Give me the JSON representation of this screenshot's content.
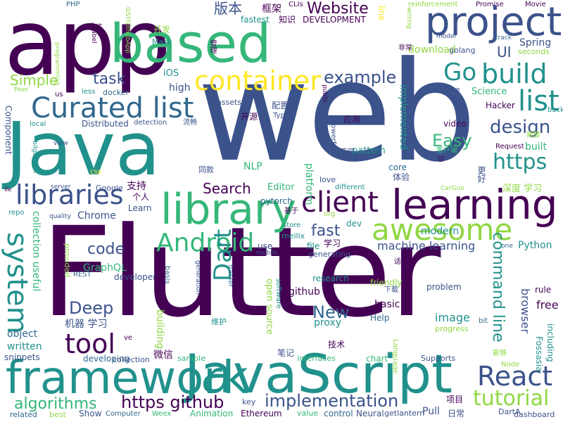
{
  "palette": {
    "purple": "#440154",
    "indigo": "#3b528b",
    "blue": "#31688e",
    "teal": "#21918c",
    "green": "#35b779",
    "lime": "#90d743",
    "yellow": "#fde725"
  },
  "words": [
    {
      "text": "Flutter",
      "c": "purple"
    },
    {
      "text": "web",
      "c": "indigo"
    },
    {
      "text": "app",
      "c": "purple"
    },
    {
      "text": "Java",
      "c": "teal"
    },
    {
      "text": "JavaScript",
      "c": "teal"
    },
    {
      "text": "framework",
      "c": "teal"
    },
    {
      "text": "based",
      "c": "green"
    },
    {
      "text": "project",
      "c": "indigo"
    },
    {
      "text": "library",
      "c": "green"
    },
    {
      "text": "learning",
      "c": "purple"
    },
    {
      "text": "container",
      "c": "yellow"
    },
    {
      "text": "Curated list",
      "c": "blue"
    },
    {
      "text": "awesome",
      "c": "lime"
    },
    {
      "text": "build",
      "c": "teal"
    },
    {
      "text": "list",
      "c": "teal"
    },
    {
      "text": "libraries",
      "c": "indigo"
    },
    {
      "text": "client",
      "c": "purple"
    },
    {
      "text": "Android",
      "c": "green"
    },
    {
      "text": "system",
      "c": "teal"
    },
    {
      "text": "tool",
      "c": "purple"
    },
    {
      "text": "React",
      "c": "indigo"
    },
    {
      "text": "Dart",
      "c": "teal"
    },
    {
      "text": "Go",
      "c": "teal"
    },
    {
      "text": "design",
      "c": "indigo"
    },
    {
      "text": "https",
      "c": "teal"
    },
    {
      "text": "tutorial",
      "c": "lime"
    },
    {
      "text": "command line",
      "c": "teal"
    },
    {
      "text": "implementation",
      "c": "indigo"
    },
    {
      "text": "https github",
      "c": "purple"
    },
    {
      "text": "algorithms",
      "c": "green"
    },
    {
      "text": "Deep",
      "c": "indigo"
    },
    {
      "text": "New",
      "c": "blue"
    },
    {
      "text": "code",
      "c": "indigo"
    },
    {
      "text": "example",
      "c": "indigo"
    },
    {
      "text": "task",
      "c": "indigo"
    },
    {
      "text": "Simple",
      "c": "lime"
    },
    {
      "text": "Website",
      "c": "purple"
    },
    {
      "text": "版本",
      "c": "indigo"
    },
    {
      "text": "Easy",
      "c": "green"
    },
    {
      "text": "Search",
      "c": "purple"
    },
    {
      "text": "fast",
      "c": "indigo"
    },
    {
      "text": "UI",
      "c": "indigo"
    },
    {
      "text": "machine learning",
      "c": "indigo"
    },
    {
      "text": "collection useful",
      "c": "green"
    },
    {
      "text": "object",
      "c": "blue"
    },
    {
      "text": "written",
      "c": "teal"
    },
    {
      "text": "snippets",
      "c": "indigo"
    },
    {
      "text": "developing",
      "c": "blue"
    },
    {
      "text": "collection",
      "c": "indigo"
    },
    {
      "text": "sample",
      "c": "green"
    },
    {
      "text": "interfaces",
      "c": "green"
    },
    {
      "text": "chart",
      "c": "green"
    },
    {
      "text": "Supports",
      "c": "indigo"
    },
    {
      "text": "dashboard",
      "c": "indigo"
    },
    {
      "text": "Pull",
      "c": "indigo"
    },
    {
      "text": "日常",
      "c": "indigo"
    },
    {
      "text": "项目",
      "c": "purple"
    },
    {
      "text": "DartA",
      "c": "indigo"
    },
    {
      "text": "Neural",
      "c": "indigo"
    },
    {
      "text": "getlantern",
      "c": "indigo"
    },
    {
      "text": "control",
      "c": "blue"
    },
    {
      "text": "value",
      "c": "green"
    },
    {
      "text": "Ethereum",
      "c": "purple"
    },
    {
      "text": "key",
      "c": "indigo"
    },
    {
      "text": "Animation",
      "c": "green"
    },
    {
      "text": "Weex",
      "c": "green"
    },
    {
      "text": "Computer",
      "c": "blue"
    },
    {
      "text": "Show",
      "c": "indigo"
    },
    {
      "text": "best",
      "c": "lime"
    },
    {
      "text": "related",
      "c": "blue"
    },
    {
      "text": "browser",
      "c": "indigo"
    },
    {
      "text": "free",
      "c": "purple"
    },
    {
      "text": "image",
      "c": "teal"
    },
    {
      "text": "progress",
      "c": "lime"
    },
    {
      "text": "proxy",
      "c": "teal"
    },
    {
      "text": "github",
      "c": "purple"
    },
    {
      "text": "basic",
      "c": "purple"
    },
    {
      "text": "Help",
      "c": "blue"
    },
    {
      "text": "research",
      "c": "teal"
    },
    {
      "text": "friendly",
      "c": "lime"
    },
    {
      "text": "problem",
      "c": "indigo"
    },
    {
      "text": "rule",
      "c": "purple"
    },
    {
      "text": "Python",
      "c": "teal"
    },
    {
      "text": "modern",
      "c": "teal"
    },
    {
      "text": "file",
      "c": "teal"
    },
    {
      "text": "学习",
      "c": "purple"
    },
    {
      "text": "open source",
      "c": "lime"
    },
    {
      "text": "use",
      "c": "indigo"
    },
    {
      "text": "mobile",
      "c": "indigo"
    },
    {
      "text": "meilix",
      "c": "teal"
    },
    {
      "text": "generating",
      "c": "indigo"
    },
    {
      "text": "GraphQL",
      "c": "green"
    },
    {
      "text": "developer",
      "c": "indigo"
    },
    {
      "text": "机器 学习",
      "c": "indigo"
    },
    {
      "text": "微信",
      "c": "purple"
    },
    {
      "text": "笔记",
      "c": "indigo"
    },
    {
      "text": "技术",
      "c": "purple"
    },
    {
      "text": "REST",
      "c": "blue"
    },
    {
      "text": "provided",
      "c": "lime"
    },
    {
      "text": "Chrome",
      "c": "indigo"
    },
    {
      "text": "Learn",
      "c": "indigo"
    },
    {
      "text": "个人",
      "c": "purple"
    },
    {
      "text": "支持",
      "c": "purple"
    },
    {
      "text": "Google",
      "c": "indigo"
    },
    {
      "text": "server",
      "c": "indigo"
    },
    {
      "text": "NLP",
      "c": "green"
    },
    {
      "text": "pytorch",
      "c": "blue"
    },
    {
      "text": "Editor",
      "c": "green"
    },
    {
      "text": "platform",
      "c": "green"
    },
    {
      "text": "pattern",
      "c": "teal"
    },
    {
      "text": "core",
      "c": "blue"
    },
    {
      "text": "体验",
      "c": "indigo"
    },
    {
      "text": "深度 学习",
      "c": "lime"
    },
    {
      "text": "CarGuo",
      "c": "lime"
    },
    {
      "text": "Distributed",
      "c": "indigo"
    },
    {
      "text": "detection",
      "c": "indigo"
    },
    {
      "text": "流畅",
      "c": "indigo"
    },
    {
      "text": "开源",
      "c": "purple"
    },
    {
      "text": "配置",
      "c": "indigo"
    },
    {
      "text": "assets",
      "c": "indigo"
    },
    {
      "text": "Type",
      "c": "indigo"
    },
    {
      "text": "应用",
      "c": "purple"
    },
    {
      "text": "video",
      "c": "purple"
    },
    {
      "text": "Hacker",
      "c": "purple"
    },
    {
      "text": "Science",
      "c": "green"
    },
    {
      "text": "engine",
      "c": "indigo"
    },
    {
      "text": "Request",
      "c": "purple"
    },
    {
      "text": "客户端",
      "c": "green"
    },
    {
      "text": "Spring",
      "c": "indigo"
    },
    {
      "text": "download",
      "c": "lime"
    },
    {
      "text": "golang",
      "c": "indigo"
    },
    {
      "text": "seconds",
      "c": "lime"
    },
    {
      "text": "框架",
      "c": "purple"
    },
    {
      "text": "知识",
      "c": "purple"
    },
    {
      "text": "fastest",
      "c": "teal"
    },
    {
      "text": "CLIs",
      "c": "purple"
    },
    {
      "text": "DEVELOPMENT",
      "c": "purple"
    },
    {
      "text": "reinforcement",
      "c": "lime"
    },
    {
      "text": "Promise",
      "c": "purple"
    },
    {
      "text": "Movie",
      "c": "purple"
    },
    {
      "text": "PHP",
      "c": "blue"
    },
    {
      "text": "give",
      "c": "purple"
    },
    {
      "text": "开发",
      "c": "lime"
    },
    {
      "text": "Mask",
      "c": "teal"
    },
    {
      "text": "iOS",
      "c": "teal"
    },
    {
      "text": "high",
      "c": "indigo"
    },
    {
      "text": "docker",
      "c": "blue"
    },
    {
      "text": "less",
      "c": "teal"
    },
    {
      "text": "us",
      "c": "purple"
    },
    {
      "text": "Peer",
      "c": "lime"
    },
    {
      "text": "terminal",
      "c": "indigo"
    },
    {
      "text": "model",
      "c": "indigo"
    },
    {
      "text": "track",
      "c": "blue"
    },
    {
      "text": "writing",
      "c": "lime"
    },
    {
      "text": "label",
      "c": "purple"
    },
    {
      "text": "GSYGithubApp",
      "c": "lime"
    },
    {
      "text": "programming",
      "c": "lime"
    },
    {
      "text": "line",
      "c": "yellow"
    },
    {
      "text": "管理",
      "c": "purple"
    },
    {
      "text": "非常",
      "c": "purple"
    },
    {
      "text": "Component",
      "c": "indigo"
    },
    {
      "text": "local",
      "c": "teal"
    },
    {
      "text": "bilgisayarl",
      "c": "teal"
    },
    {
      "text": "view",
      "c": "indigo"
    },
    {
      "text": "css",
      "c": "yellow"
    },
    {
      "text": "ile",
      "c": "purple"
    },
    {
      "text": "repo",
      "c": "teal"
    },
    {
      "text": "quality",
      "c": "indigo"
    },
    {
      "text": "store",
      "c": "teal"
    },
    {
      "text": "dev",
      "c": "teal"
    },
    {
      "text": "org",
      "c": "lime"
    },
    {
      "text": "基于",
      "c": "purple"
    },
    {
      "text": "love",
      "c": "indigo"
    },
    {
      "text": "different",
      "c": "teal"
    },
    {
      "text": "适合",
      "c": "purple"
    },
    {
      "text": "one",
      "c": "blue"
    },
    {
      "text": "下载",
      "c": "indigo"
    },
    {
      "text": "bit",
      "c": "blue"
    },
    {
      "text": "更好",
      "c": "indigo"
    },
    {
      "text": "需要",
      "c": "lime"
    },
    {
      "text": "backend",
      "c": "teal"
    },
    {
      "text": "Node",
      "c": "lime"
    },
    {
      "text": "能够",
      "c": "lime"
    },
    {
      "text": "Language",
      "c": "lime"
    },
    {
      "text": "software",
      "c": "teal"
    },
    {
      "text": "维护",
      "c": "teal"
    },
    {
      "text": "basis",
      "c": "blue"
    },
    {
      "text": "generation",
      "c": "indigo"
    },
    {
      "text": "tracker",
      "c": "blue"
    },
    {
      "text": "building",
      "c": "lime"
    },
    {
      "text": "ve",
      "c": "purple"
    },
    {
      "text": "implemented",
      "c": "teal"
    },
    {
      "text": "powerful",
      "c": "indigo"
    },
    {
      "text": "public",
      "c": "purple"
    },
    {
      "text": "不同",
      "c": "indigo"
    },
    {
      "text": "js",
      "c": "purple"
    },
    {
      "text": "同款",
      "c": "indigo"
    },
    {
      "text": "including",
      "c": "teal"
    },
    {
      "text": "built",
      "c": "green"
    },
    {
      "text": "Fossasia",
      "c": "teal"
    }
  ]
}
